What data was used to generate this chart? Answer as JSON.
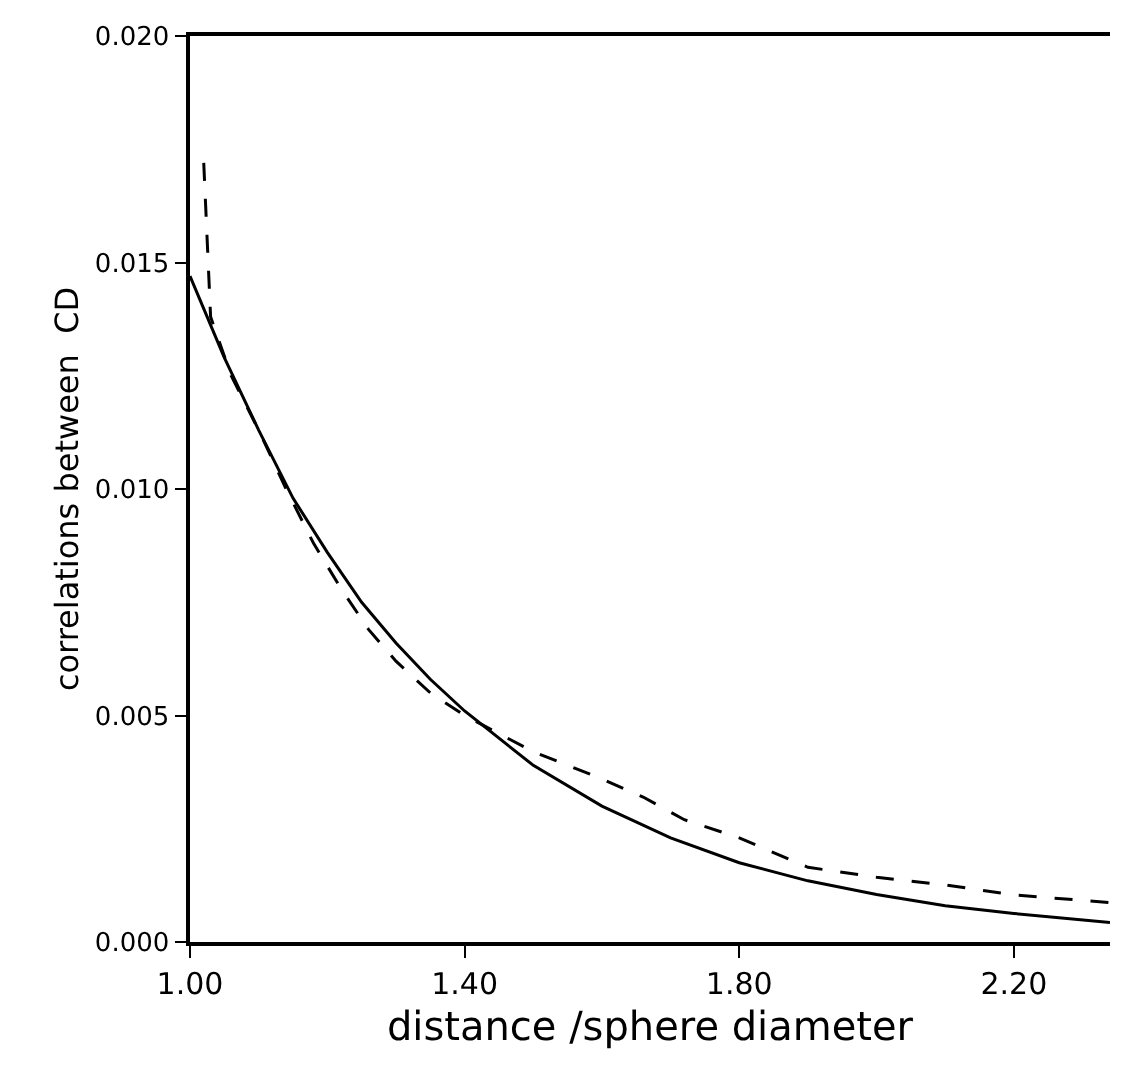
{
  "chart_data": {
    "type": "line",
    "xlabel": "distance /sphere diameter",
    "ylabel": "correlations between  CD",
    "xlim": [
      1.0,
      2.34
    ],
    "ylim": [
      0.0,
      0.02
    ],
    "xticks": [
      {
        "value": 1.0,
        "label": "1.00"
      },
      {
        "value": 1.4,
        "label": "1.40"
      },
      {
        "value": 1.8,
        "label": "1.80"
      },
      {
        "value": 2.2,
        "label": "2.20"
      }
    ],
    "yticks": [
      {
        "value": 0.0,
        "label": "0.000"
      },
      0.005,
      {
        "value": 0.01,
        "label": "0.010"
      },
      0.015,
      {
        "value": 0.02,
        "label": "0.020"
      }
    ],
    "marker": "none",
    "series": [
      {
        "color": "#000000",
        "line_style": "solid",
        "x": [
          1.0,
          1.05,
          1.1,
          1.15,
          1.2,
          1.25,
          1.3,
          1.35,
          1.4,
          1.5,
          1.6,
          1.7,
          1.8,
          1.9,
          2.0,
          2.1,
          2.2,
          2.34
        ],
        "values": [
          0.0147,
          0.0129,
          0.0113,
          0.0098,
          0.0086,
          0.0075,
          0.0066,
          0.0058,
          0.0051,
          0.0039,
          0.003,
          0.0023,
          0.00175,
          0.00135,
          0.00105,
          0.0008,
          0.00063,
          0.00043
        ]
      },
      {
        "color": "#000000",
        "line_style": "dashed",
        "x": [
          1.02,
          1.03,
          1.06,
          1.1,
          1.14,
          1.18,
          1.22,
          1.26,
          1.3,
          1.35,
          1.4,
          1.45,
          1.5,
          1.55,
          1.6,
          1.66,
          1.72,
          1.8,
          1.9,
          2.0,
          2.1,
          2.2,
          2.34
        ],
        "values": [
          0.0172,
          0.0138,
          0.0125,
          0.0113,
          0.01,
          0.0088,
          0.0078,
          0.0069,
          0.0062,
          0.0055,
          0.005,
          0.0046,
          0.0042,
          0.0039,
          0.0036,
          0.0032,
          0.0027,
          0.0023,
          0.00165,
          0.00143,
          0.00126,
          0.00104,
          0.00087
        ]
      }
    ]
  }
}
